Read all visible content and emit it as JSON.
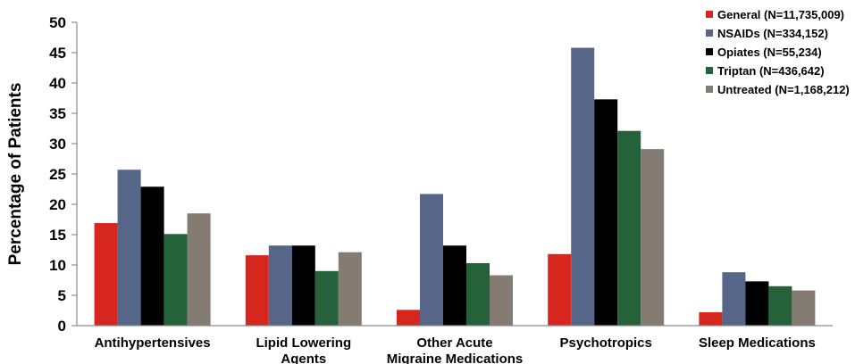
{
  "chart_data": {
    "type": "bar",
    "ylabel": "Percentage of Patients",
    "ylim": [
      0,
      50
    ],
    "yticks": [
      0,
      5,
      10,
      15,
      20,
      25,
      30,
      35,
      40,
      45,
      50
    ],
    "grid": false,
    "legend_position": "top-right",
    "categories": [
      [
        "Antihypertensives"
      ],
      [
        "Lipid Lowering",
        "Agents"
      ],
      [
        "Other Acute",
        "Migraine Medications"
      ],
      [
        "Psychotropics"
      ],
      [
        "Sleep Medications"
      ]
    ],
    "series": [
      {
        "name": "General (N=11,735,009)",
        "color": "#d7261e",
        "values": [
          16.9,
          11.6,
          2.6,
          11.8,
          2.2
        ]
      },
      {
        "name": "NSAIDs (N=334,152)",
        "color": "#566688",
        "values": [
          25.7,
          13.2,
          21.7,
          45.8,
          8.8
        ]
      },
      {
        "name": "Opiates (N=55,234)",
        "color": "#000000",
        "values": [
          22.9,
          13.2,
          13.2,
          37.3,
          7.3
        ]
      },
      {
        "name": "Triptan (N=436,642)",
        "color": "#25623a",
        "values": [
          15.1,
          9.0,
          10.3,
          32.1,
          6.5
        ]
      },
      {
        "name": "Untreated (N=1,168,212)",
        "color": "#847b73",
        "values": [
          18.5,
          12.1,
          8.3,
          29.1,
          5.8
        ]
      }
    ]
  }
}
